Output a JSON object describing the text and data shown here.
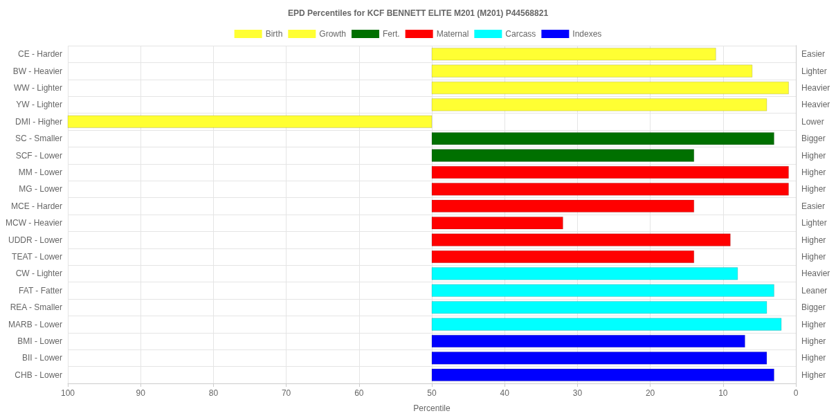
{
  "chart_data": {
    "type": "bar",
    "orientation": "horizontal",
    "title": "EPD Percentiles for KCF BENNETT ELITE M201 (M201) P44568821",
    "xlabel": "Percentile",
    "categories": [
      "CE - Harder",
      "BW - Heavier",
      "WW - Lighter",
      "YW - Lighter",
      "DMI - Higher",
      "SC - Smaller",
      "SCF - Lower",
      "MM - Lower",
      "MG - Lower",
      "MCE - Harder",
      "MCW - Heavier",
      "UDDR - Lower",
      "TEAT - Lower",
      "CW - Lighter",
      "FAT - Fatter",
      "REA - Smaller",
      "MARB - Lower",
      "BMI - Lower",
      "BII - Lower",
      "CHB - Lower"
    ],
    "y2_categories": [
      "Easier",
      "Lighter",
      "Heavier",
      "Heavier",
      "Lower",
      "Bigger",
      "Higher",
      "Higher",
      "Higher",
      "Easier",
      "Lighter",
      "Higher",
      "Higher",
      "Heavier",
      "Leaner",
      "Bigger",
      "Higher",
      "Higher",
      "Higher",
      "Higher"
    ],
    "series": [
      {
        "name": "Birth",
        "color": "#ffff33",
        "base": [
          50,
          50,
          null,
          null,
          null,
          null,
          null,
          null,
          null,
          null,
          null,
          null,
          null,
          null,
          null,
          null,
          null,
          null,
          null,
          null
        ],
        "values": [
          -39,
          -44,
          null,
          null,
          null,
          null,
          null,
          null,
          null,
          null,
          null,
          null,
          null,
          null,
          null,
          null,
          null,
          null,
          null,
          null
        ]
      },
      {
        "name": "Growth",
        "color": "#ffff33",
        "base": [
          null,
          null,
          50,
          50,
          50,
          null,
          null,
          null,
          null,
          null,
          null,
          null,
          null,
          null,
          null,
          null,
          null,
          null,
          null,
          null
        ],
        "values": [
          null,
          null,
          -49,
          -46,
          50,
          null,
          null,
          null,
          null,
          null,
          null,
          null,
          null,
          null,
          null,
          null,
          null,
          null,
          null,
          null
        ]
      },
      {
        "name": "Fert.",
        "color": "#007000",
        "base": [
          null,
          null,
          null,
          null,
          null,
          50,
          50,
          null,
          null,
          null,
          null,
          null,
          null,
          null,
          null,
          null,
          null,
          null,
          null,
          null
        ],
        "values": [
          null,
          null,
          null,
          null,
          null,
          -47,
          -36,
          null,
          null,
          null,
          null,
          null,
          null,
          null,
          null,
          null,
          null,
          null,
          null,
          null
        ]
      },
      {
        "name": "Maternal",
        "color": "#ff0000",
        "base": [
          null,
          null,
          null,
          null,
          null,
          null,
          null,
          50,
          50,
          50,
          50,
          50,
          50,
          null,
          null,
          null,
          null,
          null,
          null,
          null
        ],
        "values": [
          null,
          null,
          null,
          null,
          null,
          null,
          null,
          -49,
          -49,
          -36,
          -18,
          -41,
          -36,
          null,
          null,
          null,
          null,
          null,
          null,
          null
        ]
      },
      {
        "name": "Carcass",
        "color": "#00ffff",
        "base": [
          null,
          null,
          null,
          null,
          null,
          null,
          null,
          null,
          null,
          null,
          null,
          null,
          null,
          50,
          50,
          50,
          50,
          null,
          null,
          null
        ],
        "values": [
          null,
          null,
          null,
          null,
          null,
          null,
          null,
          null,
          null,
          null,
          null,
          null,
          null,
          -42,
          -47,
          -46,
          -48,
          null,
          null,
          null
        ]
      },
      {
        "name": "Indexes",
        "color": "#0000ff",
        "base": [
          null,
          null,
          null,
          null,
          null,
          null,
          null,
          null,
          null,
          null,
          null,
          null,
          null,
          null,
          null,
          null,
          null,
          50,
          50,
          50
        ],
        "values": [
          null,
          null,
          null,
          null,
          null,
          null,
          null,
          null,
          null,
          null,
          null,
          null,
          null,
          null,
          null,
          null,
          null,
          -43,
          -46,
          -47
        ]
      }
    ],
    "xlim": [
      100,
      0
    ],
    "xticks": [
      100,
      90,
      80,
      70,
      60,
      50,
      40,
      30,
      20,
      10,
      0
    ],
    "grid": true,
    "legend": "top"
  }
}
